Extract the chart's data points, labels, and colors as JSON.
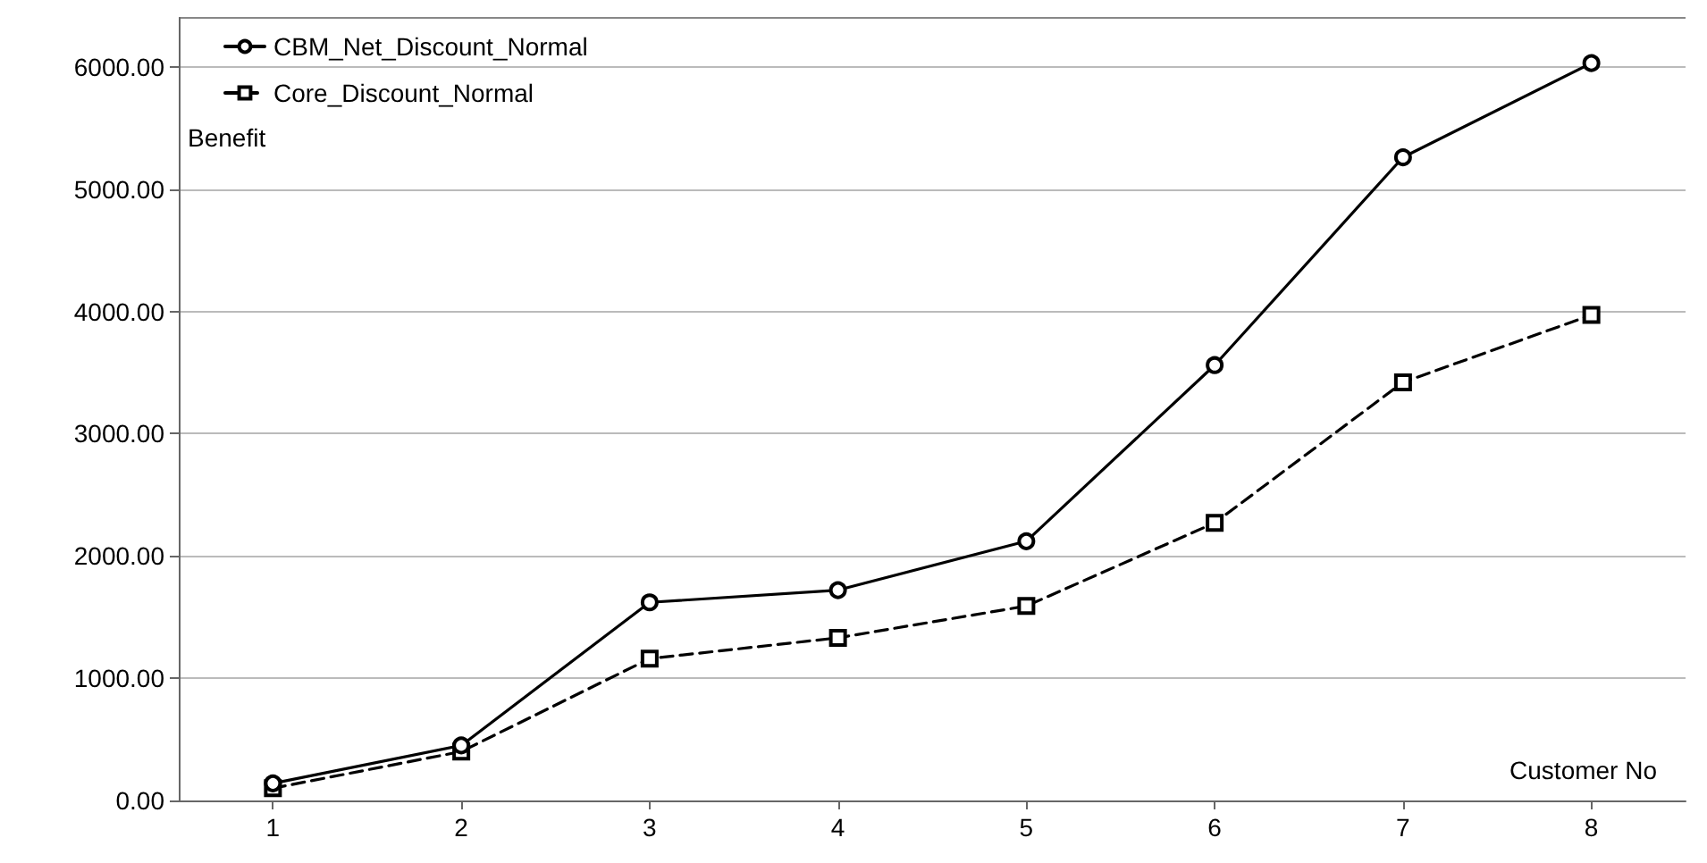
{
  "chart_data": {
    "type": "line",
    "xlabel": "Customer No",
    "ylabel": "Benefit",
    "categories": [
      "1",
      "2",
      "3",
      "4",
      "5",
      "6",
      "7",
      "8"
    ],
    "series": [
      {
        "name": "CBM_Net_Discount_Normal",
        "color": "#000000",
        "marker": "circle",
        "line_style": "solid",
        "values": [
          140,
          450,
          1620,
          1720,
          2120,
          3560,
          5260,
          6030
        ]
      },
      {
        "name": "Core_Discount_Normal",
        "color": "#000000",
        "marker": "square",
        "line_style": "dashed",
        "values": [
          100,
          400,
          1160,
          1330,
          1590,
          2270,
          3420,
          3970
        ]
      }
    ],
    "ylim": [
      0,
      6400
    ],
    "yticks": [
      {
        "value": 0,
        "label": "0.00"
      },
      {
        "value": 1000,
        "label": "1000.00"
      },
      {
        "value": 2000,
        "label": "2000.00"
      },
      {
        "value": 3000,
        "label": "3000.00"
      },
      {
        "value": 4000,
        "label": "4000.00"
      },
      {
        "value": 5000,
        "label": "5000.00"
      },
      {
        "value": 6000,
        "label": "6000.00"
      }
    ],
    "grid": "y",
    "legend": "top left"
  }
}
